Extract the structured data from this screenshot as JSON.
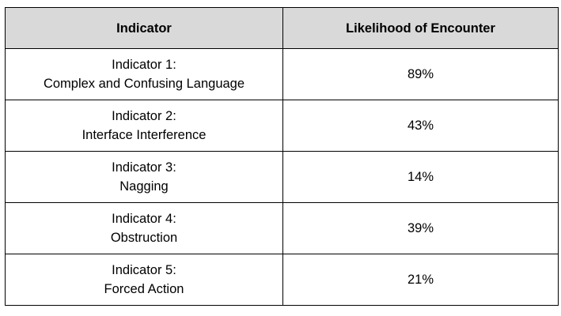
{
  "table": {
    "headers": {
      "indicator": "Indicator",
      "likelihood": "Likelihood of Encounter"
    },
    "rows": [
      {
        "label": "Indicator 1:",
        "name": "Complex and Confusing Language",
        "value": "89%"
      },
      {
        "label": "Indicator 2:",
        "name": "Interface Interference",
        "value": "43%"
      },
      {
        "label": "Indicator 3:",
        "name": "Nagging",
        "value": "14%"
      },
      {
        "label": "Indicator 4:",
        "name": "Obstruction",
        "value": "39%"
      },
      {
        "label": "Indicator 5:",
        "name": "Forced Action",
        "value": "21%"
      }
    ]
  }
}
